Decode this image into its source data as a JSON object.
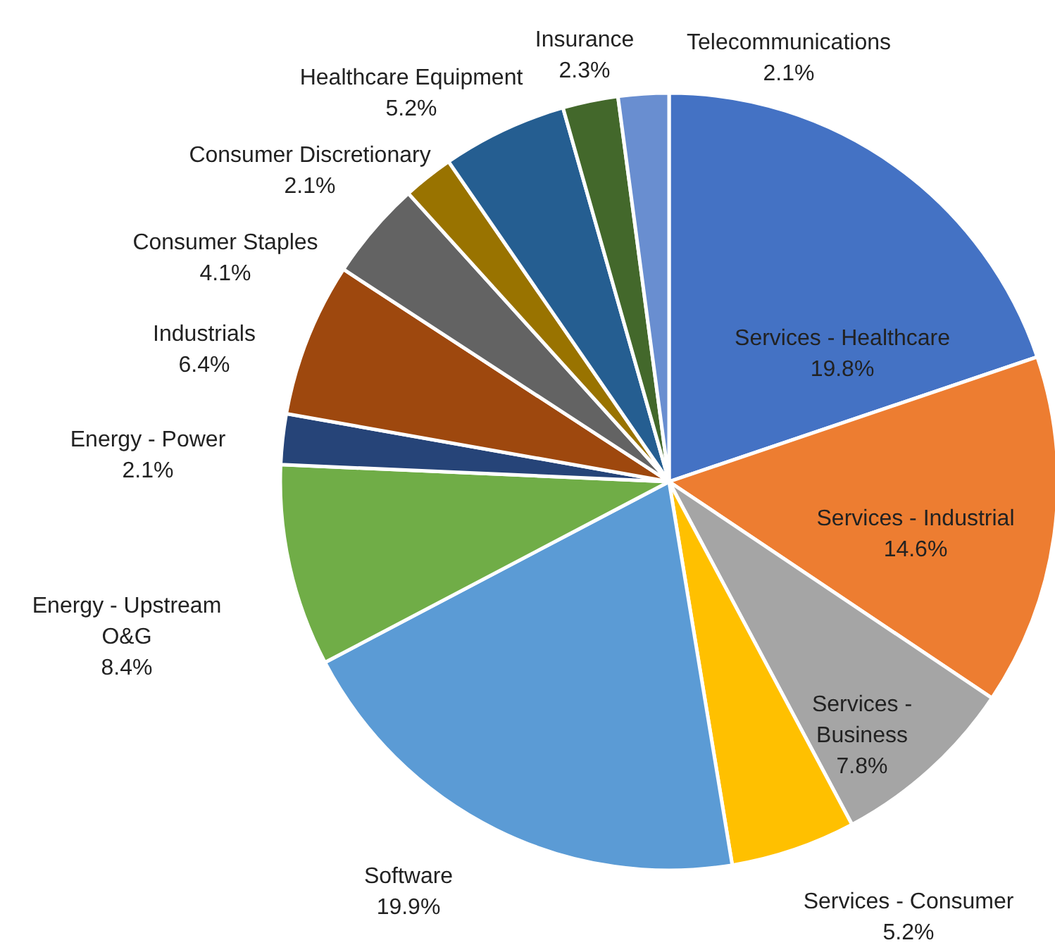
{
  "chart_data": {
    "type": "pie",
    "categories": [
      "Services - Healthcare",
      "Services - Industrial",
      "Services - Business",
      "Services - Consumer",
      "Software",
      "Energy - Upstream O&G",
      "Energy - Power",
      "Industrials",
      "Consumer Staples",
      "Consumer Discretionary",
      "Healthcare Equipment",
      "Insurance",
      "Telecommunications"
    ],
    "values": [
      19.8,
      14.6,
      7.8,
      5.2,
      19.9,
      8.4,
      2.1,
      6.4,
      4.1,
      2.1,
      5.2,
      2.3,
      2.1
    ],
    "value_labels": [
      "19.8%",
      "14.6%",
      "7.8%",
      "5.2%",
      "19.9%",
      "8.4%",
      "2.1%",
      "6.4%",
      "4.1%",
      "2.1%",
      "5.2%",
      "2.3%",
      "2.1%"
    ],
    "colors": [
      "#4472c4",
      "#ed7d31",
      "#a5a5a5",
      "#ffc000",
      "#5b9bd5",
      "#70ad47",
      "#264478",
      "#9e480e",
      "#636363",
      "#997300",
      "#255e91",
      "#43682b",
      "#698ed0"
    ]
  }
}
